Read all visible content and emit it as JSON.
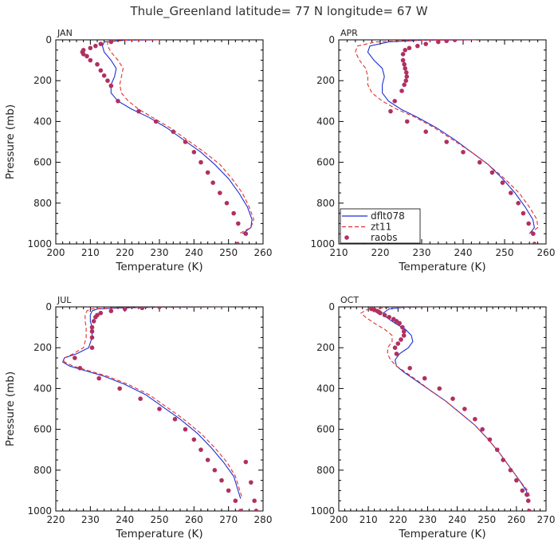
{
  "title": "Thule_Greenland  latitude= 77 N longitude= 67 W",
  "legend": {
    "location": "lower-left of APR panel",
    "items": [
      {
        "label": "dflt078",
        "style": "solid",
        "color": "#1f2fd0"
      },
      {
        "label": "zt11",
        "style": "dashed",
        "color": "#e03030"
      },
      {
        "label": "raobs",
        "style": "dots",
        "color": "#b03060"
      }
    ]
  },
  "chart_data": [
    {
      "type": "line",
      "panel": "JAN",
      "xlabel": "Temperature (K)",
      "ylabel": "Pressure (mb)",
      "xlim": [
        200,
        260
      ],
      "ylim": [
        1000,
        0
      ],
      "xticks": [
        200,
        210,
        220,
        230,
        240,
        250,
        260
      ],
      "yticks": [
        0,
        200,
        400,
        600,
        800,
        1000
      ],
      "series": [
        {
          "name": "dflt078",
          "x": [
            230,
            220,
            214,
            213.5,
            214,
            216,
            217.5,
            217,
            216,
            216,
            218,
            222,
            227,
            232,
            237,
            242,
            246,
            250,
            253,
            255.5,
            256.8,
            256.5,
            254
          ],
          "y": [
            0,
            2,
            10,
            30,
            60,
            100,
            140,
            180,
            220,
            260,
            300,
            340,
            380,
            430,
            490,
            550,
            610,
            680,
            750,
            820,
            880,
            920,
            950
          ]
        },
        {
          "name": "zt11",
          "x": [
            230,
            220,
            215,
            215,
            216,
            218,
            219.5,
            219,
            218.5,
            219,
            221,
            224,
            228,
            233,
            238,
            243,
            247.5,
            251,
            254,
            256,
            257.3,
            256.5,
            253
          ],
          "y": [
            0,
            2,
            10,
            30,
            60,
            100,
            140,
            180,
            220,
            260,
            300,
            340,
            380,
            430,
            490,
            550,
            610,
            680,
            750,
            820,
            880,
            920,
            950
          ]
        },
        {
          "name": "raobs",
          "x": [
            216,
            213,
            211.5,
            210,
            208,
            207.7,
            208,
            209,
            210,
            212,
            213,
            214,
            215,
            216,
            218,
            224,
            229,
            234,
            237.5,
            240,
            242,
            244,
            245.5,
            247.5,
            249.5,
            251.5,
            252.8,
            255,
            252.6
          ],
          "y": [
            10,
            20,
            30,
            40,
            50,
            60,
            70,
            80,
            100,
            120,
            150,
            175,
            200,
            225,
            300,
            350,
            400,
            450,
            500,
            550,
            600,
            650,
            700,
            750,
            800,
            850,
            900,
            950,
            1000
          ]
        }
      ]
    },
    {
      "type": "line",
      "panel": "APR",
      "xlabel": "Temperature (K)",
      "ylabel": "",
      "xlim": [
        210,
        260
      ],
      "ylim": [
        1000,
        0
      ],
      "xticks": [
        210,
        220,
        230,
        240,
        250,
        260
      ],
      "yticks": [
        0,
        200,
        400,
        600,
        800,
        1000
      ],
      "series": [
        {
          "name": "dflt078",
          "x": [
            243,
            230,
            222,
            217.5,
            217,
            218.5,
            220.5,
            221,
            220.5,
            220.5,
            222,
            225,
            229,
            233.5,
            238,
            242,
            246,
            249.5,
            252.5,
            255,
            256.8,
            257.2,
            256
          ],
          "y": [
            0,
            2,
            10,
            30,
            60,
            100,
            140,
            180,
            220,
            260,
            300,
            340,
            380,
            430,
            490,
            550,
            610,
            680,
            750,
            820,
            880,
            920,
            950
          ]
        },
        {
          "name": "zt11",
          "x": [
            243,
            228,
            219,
            214.5,
            214,
            215,
            216.5,
            217,
            217,
            218,
            220.5,
            224,
            228.5,
            233,
            237.5,
            242,
            246,
            250,
            253.5,
            256,
            257.8,
            258,
            256
          ],
          "y": [
            0,
            2,
            10,
            30,
            60,
            100,
            140,
            180,
            220,
            260,
            300,
            340,
            380,
            430,
            490,
            550,
            610,
            680,
            750,
            820,
            880,
            920,
            950
          ]
        },
        {
          "name": "raobs",
          "x": [
            238,
            236,
            234,
            231,
            229,
            227,
            226,
            225.5,
            225.5,
            225.8,
            226,
            226.3,
            226.4,
            226.2,
            225.8,
            225.2,
            223.5,
            222.5,
            226.5,
            231,
            236,
            240,
            244,
            247,
            249.5,
            251.5,
            253.3,
            254.5,
            255.8,
            256.9,
            257.2
          ],
          "y": [
            0,
            5,
            10,
            20,
            30,
            40,
            50,
            70,
            100,
            120,
            140,
            160,
            180,
            200,
            220,
            250,
            300,
            350,
            400,
            450,
            500,
            550,
            600,
            650,
            700,
            750,
            800,
            850,
            900,
            950,
            1000
          ]
        }
      ]
    },
    {
      "type": "line",
      "panel": "JUL",
      "xlabel": "Temperature (K)",
      "ylabel": "Pressure (mb)",
      "xlim": [
        220,
        280
      ],
      "ylim": [
        1000,
        0
      ],
      "xticks": [
        220,
        230,
        240,
        250,
        260,
        270,
        280
      ],
      "yticks": [
        0,
        200,
        400,
        600,
        800,
        1000
      ],
      "series": [
        {
          "name": "dflt078",
          "x": [
            270,
            250,
            238,
            232,
            230.5,
            230,
            230,
            230.5,
            230.5,
            229.5,
            226,
            222.5,
            222,
            224,
            228,
            234,
            240,
            246,
            251,
            256,
            261,
            265,
            268.5,
            271.5,
            273.5
          ],
          "y": [
            0,
            2,
            5,
            10,
            20,
            40,
            70,
            100,
            150,
            200,
            230,
            250,
            270,
            290,
            310,
            340,
            380,
            430,
            490,
            550,
            620,
            690,
            760,
            830,
            940
          ]
        },
        {
          "name": "zt11",
          "x": [
            270,
            248,
            236,
            230,
            229,
            228.5,
            228.5,
            228.8,
            228.8,
            228,
            225,
            222.5,
            222.5,
            225,
            229,
            235,
            241,
            247,
            252,
            257,
            262,
            266,
            269.5,
            272,
            274
          ],
          "y": [
            0,
            2,
            5,
            10,
            20,
            40,
            70,
            100,
            150,
            200,
            230,
            250,
            270,
            290,
            310,
            340,
            380,
            430,
            490,
            550,
            620,
            690,
            760,
            830,
            940
          ]
        },
        {
          "name": "raobs",
          "x": [
            250,
            245,
            240,
            236,
            233,
            232,
            231.5,
            231,
            230.5,
            230.5,
            230.5,
            230.5,
            225.5,
            227,
            232.5,
            238.5,
            244.5,
            250,
            254.5,
            257.5,
            260,
            262,
            264,
            266,
            268,
            270,
            272,
            273.5,
            275,
            276.5,
            277.5,
            278
          ],
          "y": [
            0,
            5,
            10,
            20,
            30,
            40,
            50,
            70,
            100,
            120,
            150,
            200,
            250,
            300,
            350,
            400,
            450,
            500,
            550,
            600,
            650,
            700,
            750,
            800,
            850,
            900,
            950,
            1000,
            760,
            860,
            950,
            1000
          ]
        }
      ]
    },
    {
      "type": "line",
      "panel": "OCT",
      "xlabel": "Temperature (K)",
      "ylabel": "",
      "xlim": [
        200,
        270
      ],
      "ylim": [
        1000,
        0
      ],
      "xticks": [
        200,
        210,
        220,
        230,
        240,
        250,
        260,
        270
      ],
      "yticks": [
        0,
        200,
        400,
        600,
        800,
        1000
      ],
      "series": [
        {
          "name": "dflt078",
          "x": [
            232,
            222,
            217,
            215,
            216,
            219,
            222.5,
            224.5,
            225,
            223.5,
            220.5,
            219,
            219.5,
            222,
            226,
            231,
            236,
            241,
            246,
            250.5,
            254.5,
            258,
            261,
            263.3,
            264
          ],
          "y": [
            0,
            2,
            10,
            30,
            50,
            80,
            110,
            140,
            170,
            200,
            230,
            260,
            290,
            320,
            360,
            410,
            460,
            520,
            580,
            650,
            720,
            790,
            850,
            900,
            930
          ]
        },
        {
          "name": "zt11",
          "x": [
            232,
            218,
            210,
            207.5,
            209,
            212,
            215.5,
            218,
            218,
            216.5,
            216.5,
            217.5,
            219.5,
            222.5,
            226.5,
            231,
            236,
            241,
            246,
            250.5,
            254.5,
            258,
            261,
            263.8,
            264.5
          ],
          "y": [
            0,
            2,
            10,
            30,
            50,
            80,
            110,
            140,
            170,
            200,
            230,
            260,
            290,
            320,
            360,
            410,
            460,
            520,
            580,
            650,
            720,
            790,
            850,
            900,
            930
          ]
        },
        {
          "name": "raobs",
          "x": [
            211,
            212,
            213,
            213.5,
            214,
            215.5,
            217,
            218.5,
            219.5,
            220.5,
            221.5,
            222,
            222,
            221,
            220,
            219,
            219.5,
            224,
            229,
            234,
            238.5,
            242.5,
            246,
            248.5,
            251,
            253.5,
            255.5,
            258,
            260,
            262,
            263.5,
            264,
            264.3
          ],
          "y": [
            10,
            15,
            20,
            25,
            30,
            40,
            50,
            60,
            70,
            80,
            100,
            120,
            140,
            160,
            180,
            200,
            230,
            300,
            350,
            400,
            450,
            500,
            550,
            600,
            650,
            700,
            750,
            800,
            850,
            900,
            920,
            950,
            1000
          ]
        }
      ]
    }
  ]
}
